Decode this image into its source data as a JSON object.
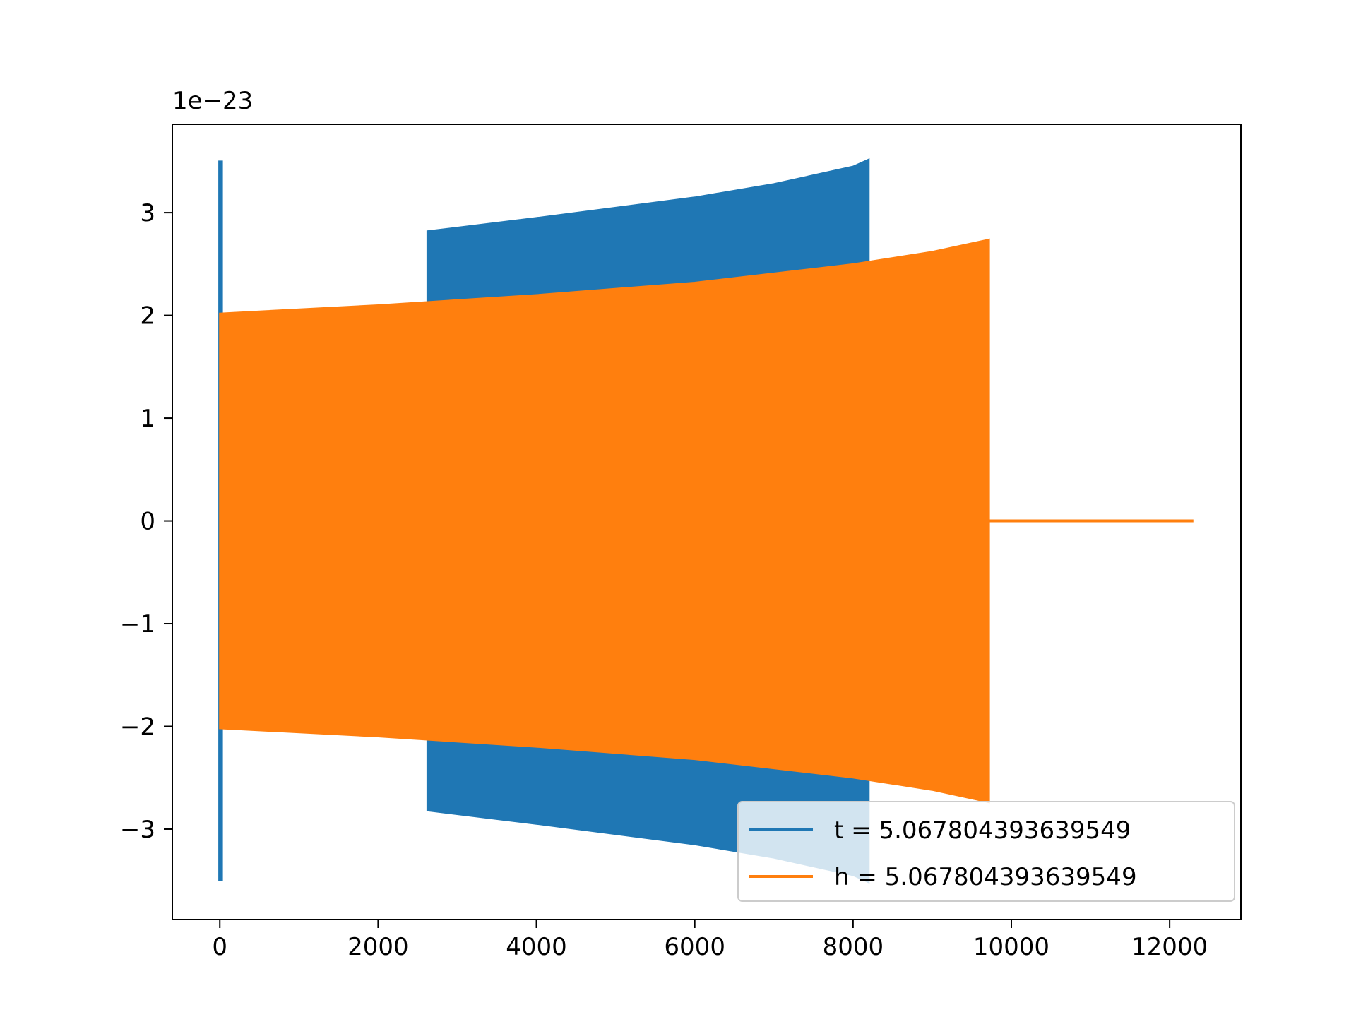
{
  "chart_data": {
    "type": "line",
    "title": "",
    "xlabel": "",
    "ylabel": "",
    "offset_text": "1e−23",
    "xlim": [
      -600,
      12900
    ],
    "ylim": [
      -3.88,
      3.86
    ],
    "xticks": [
      0,
      2000,
      4000,
      6000,
      8000,
      10000,
      12000
    ],
    "xtick_labels": [
      "0",
      "2000",
      "4000",
      "6000",
      "8000",
      "10000",
      "12000"
    ],
    "yticks": [
      -3,
      -2,
      -1,
      0,
      1,
      2,
      3
    ],
    "ytick_labels": [
      "−3",
      "−2",
      "−1",
      "0",
      "1",
      "2",
      "3"
    ],
    "grid": false,
    "legend": {
      "position": "lower right"
    },
    "series": [
      {
        "name": "t = 5.067804393639549",
        "color": "#1f77b4",
        "envelope": [
          {
            "x": -10,
            "amp": 3.5
          },
          {
            "x": 30,
            "amp": 3.5
          }
        ],
        "envelope2": [
          {
            "x": 2620,
            "amp": 2.82
          },
          {
            "x": 4000,
            "amp": 2.95
          },
          {
            "x": 6000,
            "amp": 3.15
          },
          {
            "x": 7000,
            "amp": 3.28
          },
          {
            "x": 8000,
            "amp": 3.45
          },
          {
            "x": 8200,
            "amp": 3.52
          }
        ]
      },
      {
        "name": "h = 5.067804393639549",
        "color": "#ff7f0e",
        "envelope": [
          {
            "x": 0,
            "amp": 2.02
          },
          {
            "x": 2000,
            "amp": 2.1
          },
          {
            "x": 4000,
            "amp": 2.2
          },
          {
            "x": 6000,
            "amp": 2.32
          },
          {
            "x": 8000,
            "amp": 2.5
          },
          {
            "x": 9000,
            "amp": 2.62
          },
          {
            "x": 9720,
            "amp": 2.74
          }
        ],
        "flat_segment": {
          "x_start": 9720,
          "x_end": 12300,
          "y": 0
        }
      }
    ]
  }
}
